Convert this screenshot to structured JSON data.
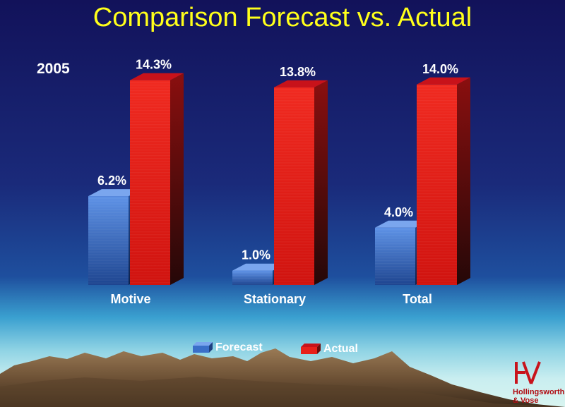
{
  "title": "Comparison Forecast vs. Actual",
  "year_label": "2005",
  "colors": {
    "forecast": "#3a6fc9",
    "actual": "#e8201a",
    "title": "#ffff1a",
    "logo": "#c8141c"
  },
  "legend": {
    "forecast": "Forecast",
    "actual": "Actual"
  },
  "chart_data": {
    "type": "bar",
    "categories": [
      "Motive",
      "Stationary",
      "Total"
    ],
    "series": [
      {
        "name": "Forecast",
        "values": [
          6.2,
          1.0,
          4.0
        ],
        "labels": [
          "6.2%",
          "1.0%",
          "4.0%"
        ]
      },
      {
        "name": "Actual",
        "values": [
          14.3,
          13.8,
          14.0
        ],
        "labels": [
          "14.3%",
          "13.8%",
          "14.0%"
        ]
      }
    ],
    "title": "Comparison Forecast vs. Actual",
    "ylim": [
      0,
      15
    ],
    "grid": false,
    "legend_position": "bottom",
    "style": "3d"
  },
  "logo": {
    "mark": "HV",
    "line1": "Hollingsworth",
    "line2": "& Vose"
  }
}
